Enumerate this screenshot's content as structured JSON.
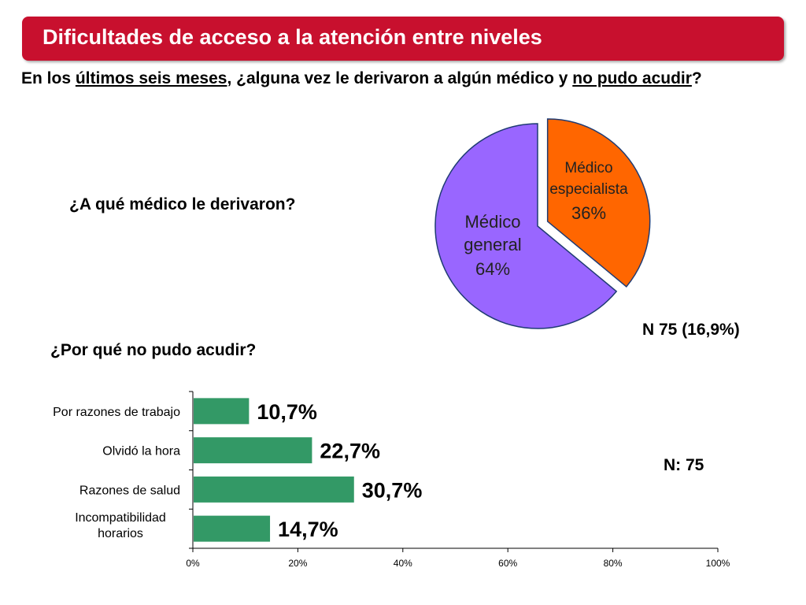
{
  "header": {
    "title": "Dificultades de acceso a la atención entre niveles"
  },
  "question": {
    "p1": "En los ",
    "u1": "últimos seis meses",
    "p2": ", ¿alguna vez le derivaron a algún médico y ",
    "u2": "no pudo acudir",
    "p3": "?"
  },
  "pie_section": {
    "question": "¿A qué médico le derivaron?",
    "n_label": "N 75 (16,9%)"
  },
  "bar_section": {
    "question": "¿Por qué no pudo acudir?",
    "n_label": "N:  75"
  },
  "colors": {
    "header": "#c8102e",
    "pie_general": "#9966ff",
    "pie_especialista": "#ff6600",
    "bar": "#339966"
  },
  "chart_data": [
    {
      "type": "pie",
      "slices": [
        {
          "label_lines": [
            "Médico",
            "general"
          ],
          "value_label": "64%",
          "value": 64
        },
        {
          "label_lines": [
            "Médico",
            "especialista"
          ],
          "value_label": "36%",
          "value": 36
        }
      ]
    },
    {
      "type": "bar",
      "orientation": "horizontal",
      "categories": [
        [
          "Por razones de trabajo"
        ],
        [
          "Olvidó la hora"
        ],
        [
          "Razones de salud"
        ],
        [
          "Incompatibilidad",
          "horarios"
        ]
      ],
      "values": [
        10.7,
        22.7,
        30.7,
        14.7
      ],
      "value_labels": [
        "10,7%",
        "22,7%",
        "30,7%",
        "14,7%"
      ],
      "xlim": [
        0,
        100
      ],
      "xticks": [
        "0%",
        "20%",
        "40%",
        "60%",
        "80%",
        "100%"
      ]
    }
  ]
}
